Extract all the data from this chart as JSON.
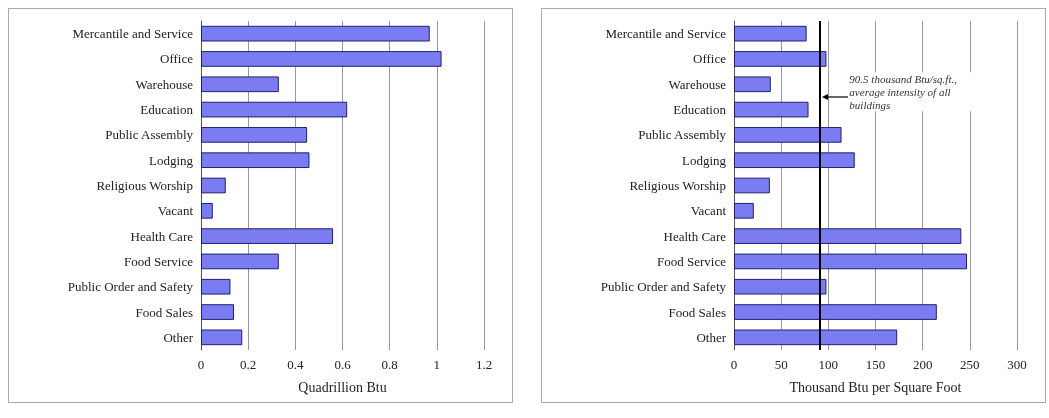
{
  "chart_data": [
    {
      "type": "bar",
      "orientation": "horizontal",
      "categories": [
        "Mercantile and Service",
        "Office",
        "Warehouse",
        "Education",
        "Public Assembly",
        "Lodging",
        "Religious Worship",
        "Vacant",
        "Health Care",
        "Food Service",
        "Public Order and Safety",
        "Food Sales",
        "Other"
      ],
      "values": [
        0.97,
        1.02,
        0.33,
        0.62,
        0.45,
        0.46,
        0.105,
        0.05,
        0.56,
        0.33,
        0.125,
        0.14,
        0.175
      ],
      "color": "#7b7bf2",
      "xlabel": "Quadrillion Btu",
      "xlim": [
        0,
        1.2
      ],
      "xticks": [
        0,
        0.2,
        0.4,
        0.6,
        0.8,
        1,
        1.2
      ],
      "grid": "x"
    },
    {
      "type": "bar",
      "orientation": "horizontal",
      "categories": [
        "Mercantile and Service",
        "Office",
        "Warehouse",
        "Education",
        "Public Assembly",
        "Lodging",
        "Religious Worship",
        "Vacant",
        "Health Care",
        "Food Service",
        "Public Order and Safety",
        "Food Sales",
        "Other"
      ],
      "values": [
        77,
        98,
        39,
        79,
        114,
        128,
        38,
        21,
        241,
        247,
        98,
        215,
        173
      ],
      "color": "#7b7bf2",
      "xlabel": "Thousand Btu per Square Foot",
      "xlim": [
        0,
        300
      ],
      "xticks": [
        0,
        50,
        100,
        150,
        200,
        250,
        300
      ],
      "grid": "x",
      "ref_lines": [
        {
          "axis": "x",
          "value": 90.5,
          "label": "90.5 thousand Btu/sq.ft., average intensity of all buildings",
          "color": "#000000"
        }
      ]
    }
  ]
}
